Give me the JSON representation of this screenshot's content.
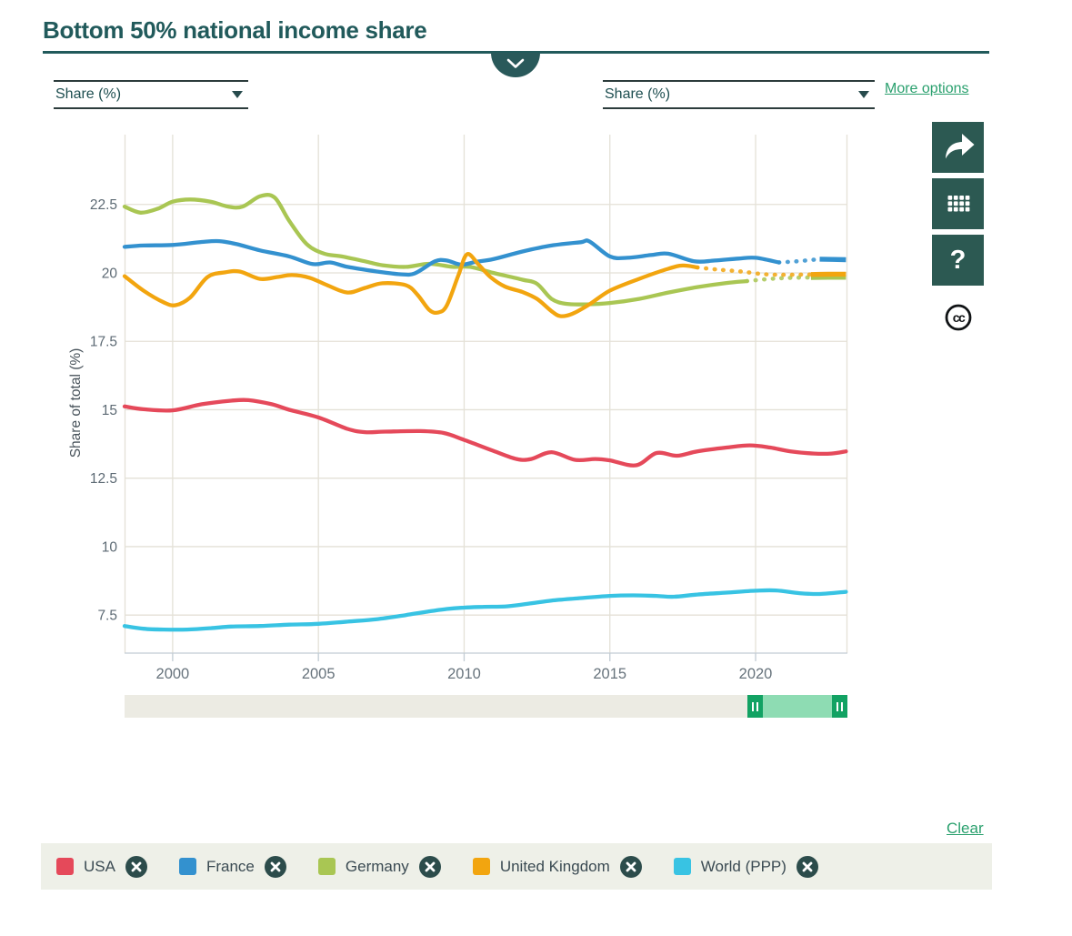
{
  "header": {
    "title": "Bottom 50% national income share"
  },
  "controls": {
    "left_unit": {
      "value": "Share (%)"
    },
    "right_unit": {
      "value": "Share (%)"
    },
    "more_options_label": "More options",
    "clear_label": "Clear"
  },
  "toolbar": {
    "buttons": [
      "share",
      "table",
      "help"
    ],
    "help_glyph": "?",
    "license_label": "cc"
  },
  "chart_data": {
    "type": "line",
    "title": "Bottom 50% national income share",
    "xlabel": "",
    "ylabel": "Share of total (%)",
    "x_ticks": [
      2000,
      2005,
      2010,
      2015,
      2020
    ],
    "y_ticks": [
      7.5,
      10,
      12.5,
      15,
      17.5,
      20,
      22.5
    ],
    "x_range": [
      1998.35,
      2023.15
    ],
    "y_range": [
      6.11,
      25.05
    ],
    "grid": true,
    "legend_position": "bottom",
    "series": [
      {
        "name": "USA",
        "color": "#e5495a",
        "points": [
          [
            1998.35,
            15.12
          ],
          [
            1999,
            15.02
          ],
          [
            2000,
            14.98
          ],
          [
            2001,
            15.2
          ],
          [
            2002,
            15.33
          ],
          [
            2002.6,
            15.35
          ],
          [
            2003.4,
            15.2
          ],
          [
            2004,
            15.0
          ],
          [
            2005,
            14.72
          ],
          [
            2006,
            14.3
          ],
          [
            2006.6,
            14.18
          ],
          [
            2007.3,
            14.2
          ],
          [
            2008.5,
            14.22
          ],
          [
            2009.3,
            14.15
          ],
          [
            2010,
            13.9
          ],
          [
            2011,
            13.5
          ],
          [
            2011.8,
            13.2
          ],
          [
            2012.3,
            13.2
          ],
          [
            2013,
            13.45
          ],
          [
            2013.8,
            13.17
          ],
          [
            2014.5,
            13.2
          ],
          [
            2015,
            13.15
          ],
          [
            2015.9,
            12.97
          ],
          [
            2016.6,
            13.42
          ],
          [
            2017.3,
            13.32
          ],
          [
            2018,
            13.48
          ],
          [
            2019,
            13.62
          ],
          [
            2019.8,
            13.7
          ],
          [
            2020.5,
            13.62
          ],
          [
            2021.2,
            13.48
          ],
          [
            2022,
            13.4
          ],
          [
            2022.6,
            13.4
          ],
          [
            2023.1,
            13.48
          ]
        ]
      },
      {
        "name": "France",
        "color": "#3391cf",
        "dotted": [
          2020.8,
          2022.2
        ],
        "points": [
          [
            1998.35,
            20.95
          ],
          [
            1999,
            21.0
          ],
          [
            2000,
            21.02
          ],
          [
            2001,
            21.13
          ],
          [
            2001.6,
            21.16
          ],
          [
            2002.2,
            21.05
          ],
          [
            2003,
            20.82
          ],
          [
            2004,
            20.6
          ],
          [
            2004.8,
            20.32
          ],
          [
            2005.4,
            20.38
          ],
          [
            2006,
            20.22
          ],
          [
            2007,
            20.05
          ],
          [
            2007.8,
            19.95
          ],
          [
            2008.3,
            19.98
          ],
          [
            2009,
            20.42
          ],
          [
            2009.4,
            20.45
          ],
          [
            2009.9,
            20.3
          ],
          [
            2010.4,
            20.4
          ],
          [
            2011,
            20.5
          ],
          [
            2012,
            20.78
          ],
          [
            2013,
            21.0
          ],
          [
            2014,
            21.12
          ],
          [
            2014.3,
            21.15
          ],
          [
            2015,
            20.6
          ],
          [
            2015.6,
            20.55
          ],
          [
            2016.4,
            20.65
          ],
          [
            2017,
            20.7
          ],
          [
            2017.9,
            20.42
          ],
          [
            2018.6,
            20.45
          ],
          [
            2019.4,
            20.52
          ],
          [
            2020,
            20.55
          ],
          [
            2020.8,
            20.38
          ],
          [
            2021.4,
            20.42
          ],
          [
            2022.2,
            20.5
          ],
          [
            2023.1,
            20.48
          ]
        ]
      },
      {
        "name": "Germany",
        "color": "#a9c653",
        "dotted": [
          2019.7,
          2021.9
        ],
        "points": [
          [
            1998.35,
            22.42
          ],
          [
            1998.9,
            22.2
          ],
          [
            1999.5,
            22.35
          ],
          [
            2000,
            22.6
          ],
          [
            2000.6,
            22.68
          ],
          [
            2001.3,
            22.6
          ],
          [
            2001.9,
            22.42
          ],
          [
            2002.4,
            22.42
          ],
          [
            2003,
            22.8
          ],
          [
            2003.5,
            22.75
          ],
          [
            2004,
            21.9
          ],
          [
            2004.6,
            21.05
          ],
          [
            2005.2,
            20.7
          ],
          [
            2005.8,
            20.6
          ],
          [
            2006.6,
            20.42
          ],
          [
            2007.2,
            20.28
          ],
          [
            2008,
            20.22
          ],
          [
            2008.8,
            20.33
          ],
          [
            2009.6,
            20.22
          ],
          [
            2010.2,
            20.22
          ],
          [
            2011,
            20.0
          ],
          [
            2012,
            19.75
          ],
          [
            2012.5,
            19.6
          ],
          [
            2013,
            19.05
          ],
          [
            2013.5,
            18.87
          ],
          [
            2014.2,
            18.85
          ],
          [
            2015,
            18.9
          ],
          [
            2016,
            19.05
          ],
          [
            2017,
            19.28
          ],
          [
            2018,
            19.48
          ],
          [
            2019,
            19.63
          ],
          [
            2019.7,
            19.7
          ],
          [
            2020.5,
            19.78
          ],
          [
            2021.2,
            19.82
          ],
          [
            2021.9,
            19.83
          ],
          [
            2022.5,
            19.84
          ],
          [
            2023.1,
            19.84
          ]
        ]
      },
      {
        "name": "United Kingdom",
        "color": "#f2a50f",
        "dotted": [
          2018,
          2021.9
        ],
        "points": [
          [
            1998.35,
            19.88
          ],
          [
            1999,
            19.35
          ],
          [
            1999.7,
            18.92
          ],
          [
            2000.1,
            18.82
          ],
          [
            2000.6,
            19.1
          ],
          [
            2001.2,
            19.85
          ],
          [
            2001.8,
            20.02
          ],
          [
            2002.3,
            20.05
          ],
          [
            2003,
            19.78
          ],
          [
            2003.6,
            19.85
          ],
          [
            2004.1,
            19.92
          ],
          [
            2004.7,
            19.82
          ],
          [
            2005.3,
            19.55
          ],
          [
            2006,
            19.28
          ],
          [
            2006.6,
            19.45
          ],
          [
            2007.2,
            19.62
          ],
          [
            2008,
            19.55
          ],
          [
            2008.4,
            19.2
          ],
          [
            2008.8,
            18.65
          ],
          [
            2009.1,
            18.55
          ],
          [
            2009.4,
            18.8
          ],
          [
            2009.8,
            19.9
          ],
          [
            2010.1,
            20.68
          ],
          [
            2010.5,
            20.3
          ],
          [
            2010.9,
            19.85
          ],
          [
            2011.4,
            19.5
          ],
          [
            2012,
            19.3
          ],
          [
            2012.5,
            19.05
          ],
          [
            2013,
            18.6
          ],
          [
            2013.3,
            18.42
          ],
          [
            2013.7,
            18.5
          ],
          [
            2014.3,
            18.85
          ],
          [
            2015,
            19.35
          ],
          [
            2016,
            19.78
          ],
          [
            2017,
            20.15
          ],
          [
            2017.5,
            20.27
          ],
          [
            2018,
            20.2
          ],
          [
            2018.7,
            20.12
          ],
          [
            2019.5,
            20.05
          ],
          [
            2020.3,
            19.95
          ],
          [
            2021,
            19.93
          ],
          [
            2021.9,
            19.94
          ],
          [
            2022.5,
            19.95
          ],
          [
            2023.1,
            19.95
          ]
        ]
      },
      {
        "name": "World (PPP)",
        "color": "#38c3e3",
        "points": [
          [
            1998.35,
            7.1
          ],
          [
            1999,
            7.0
          ],
          [
            1999.7,
            6.97
          ],
          [
            2000.5,
            6.97
          ],
          [
            2001.3,
            7.02
          ],
          [
            2002,
            7.08
          ],
          [
            2003,
            7.1
          ],
          [
            2004,
            7.15
          ],
          [
            2005,
            7.18
          ],
          [
            2006,
            7.26
          ],
          [
            2007,
            7.35
          ],
          [
            2008,
            7.5
          ],
          [
            2008.7,
            7.62
          ],
          [
            2009.4,
            7.72
          ],
          [
            2010,
            7.77
          ],
          [
            2010.7,
            7.8
          ],
          [
            2011.5,
            7.82
          ],
          [
            2012.3,
            7.93
          ],
          [
            2013,
            8.03
          ],
          [
            2014,
            8.12
          ],
          [
            2015,
            8.2
          ],
          [
            2015.8,
            8.22
          ],
          [
            2016.6,
            8.2
          ],
          [
            2017.2,
            8.17
          ],
          [
            2018,
            8.25
          ],
          [
            2019,
            8.32
          ],
          [
            2020,
            8.39
          ],
          [
            2020.7,
            8.4
          ],
          [
            2021.5,
            8.3
          ],
          [
            2022.2,
            8.27
          ],
          [
            2023.1,
            8.35
          ]
        ]
      }
    ]
  },
  "timeline": {
    "selected_window_frac": [
      0.862,
      1.0
    ]
  },
  "colors": {
    "accent_teal": "#215a5b",
    "button_teal": "#2c5952",
    "link_green": "#2aa06e",
    "grid": "#e4e1d7",
    "axis": "#c2ccd4",
    "axis_text": "#67737c",
    "slider_track": "#ecebe3",
    "slider_selection": "#8edcb3",
    "slider_handle": "#12a263",
    "legend_bg": "#eef0e8",
    "close_circle": "#2c4c4b"
  }
}
